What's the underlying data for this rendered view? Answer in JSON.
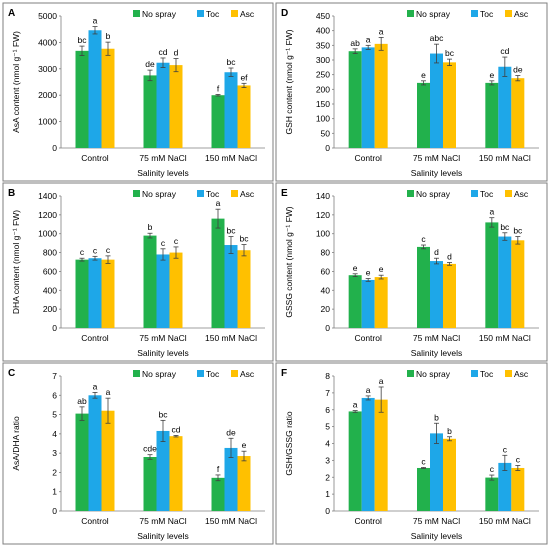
{
  "colors": {
    "No spray": "#22b14c",
    "Toc": "#1ea7e8",
    "Asc": "#ffc000"
  },
  "chart_data": [
    {
      "panel": "A",
      "type": "bar",
      "ylabel": "AsA content (nmol g⁻¹ FW)",
      "xlabel": "Salinity levels",
      "categories": [
        "Control",
        "75 mM NaCl",
        "150 mM NaCl"
      ],
      "ylim": [
        0,
        5000
      ],
      "yticks": [
        0,
        1000,
        2000,
        3000,
        4000,
        5000
      ],
      "legend_position": "top-right",
      "series": [
        {
          "name": "No spray",
          "values": [
            3680,
            2750,
            2000
          ],
          "errors": [
            180,
            200,
            30
          ],
          "labels": [
            "bc",
            "de",
            "f"
          ]
        },
        {
          "name": "Toc",
          "values": [
            4460,
            3230,
            2870
          ],
          "errors": [
            140,
            180,
            160
          ],
          "labels": [
            "a",
            "cd",
            "bc"
          ]
        },
        {
          "name": "Asc",
          "values": [
            3760,
            3140,
            2370
          ],
          "errors": [
            250,
            250,
            80
          ],
          "labels": [
            "b",
            "d",
            "ef"
          ]
        }
      ]
    },
    {
      "panel": "D",
      "type": "bar",
      "ylabel": "GSH content (nmol g⁻¹ FW)",
      "xlabel": "Salinity levels",
      "categories": [
        "Control",
        "75 mM NaCl",
        "150 mM NaCl"
      ],
      "ylim": [
        0,
        450
      ],
      "yticks": [
        0,
        50,
        100,
        150,
        200,
        250,
        300,
        350,
        400,
        450
      ],
      "legend_position": "top-right",
      "series": [
        {
          "name": "No spray",
          "values": [
            330,
            222,
            222
          ],
          "errors": [
            8,
            7,
            7
          ],
          "labels": [
            "ab",
            "e",
            "e"
          ]
        },
        {
          "name": "Toc",
          "values": [
            343,
            322,
            277
          ],
          "errors": [
            7,
            32,
            33
          ],
          "labels": [
            "a",
            "abc",
            "cd"
          ]
        },
        {
          "name": "Asc",
          "values": [
            355,
            292,
            238
          ],
          "errors": [
            22,
            11,
            9
          ],
          "labels": [
            "a",
            "bc",
            "de"
          ]
        }
      ]
    },
    {
      "panel": "B",
      "type": "bar",
      "ylabel": "DHA content (nmol g⁻¹ FW)",
      "xlabel": "Salinity levels",
      "categories": [
        "Control",
        "75 mM NaCl",
        "150 mM NaCl"
      ],
      "ylim": [
        0,
        1400
      ],
      "yticks": [
        0,
        200,
        400,
        600,
        800,
        1000,
        1200,
        1400
      ],
      "legend_position": "top-right",
      "series": [
        {
          "name": "No spray",
          "values": [
            725,
            980,
            1160
          ],
          "errors": [
            15,
            25,
            100
          ],
          "labels": [
            "c",
            "b",
            "a"
          ]
        },
        {
          "name": "Toc",
          "values": [
            740,
            780,
            880
          ],
          "errors": [
            20,
            60,
            90
          ],
          "labels": [
            "c",
            "c",
            "bc"
          ]
        },
        {
          "name": "Asc",
          "values": [
            725,
            800,
            825
          ],
          "errors": [
            40,
            60,
            60
          ],
          "labels": [
            "c",
            "c",
            "bc"
          ]
        }
      ]
    },
    {
      "panel": "E",
      "type": "bar",
      "ylabel": "GSSG content (nmol g⁻¹ FW)",
      "xlabel": "Salinity levels",
      "categories": [
        "Control",
        "75 mM NaCl",
        "150 mM NaCl"
      ],
      "ylim": [
        0,
        140
      ],
      "yticks": [
        0,
        20,
        40,
        60,
        80,
        100,
        120,
        140
      ],
      "legend_position": "top-right",
      "series": [
        {
          "name": "No spray",
          "values": [
            56,
            86,
            112
          ],
          "errors": [
            1.5,
            2,
            5
          ],
          "labels": [
            "e",
            "c",
            "a"
          ]
        },
        {
          "name": "Toc",
          "values": [
            51,
            71,
            97
          ],
          "errors": [
            1.5,
            3,
            4
          ],
          "labels": [
            "e",
            "d",
            "bc"
          ]
        },
        {
          "name": "Asc",
          "values": [
            54,
            68,
            93
          ],
          "errors": [
            2,
            1.5,
            4
          ],
          "labels": [
            "e",
            "d",
            "bc"
          ]
        }
      ]
    },
    {
      "panel": "C",
      "type": "bar",
      "ylabel": "AsA/DHA ratio",
      "xlabel": "Salinity levels",
      "categories": [
        "Control",
        "75 mM NaCl",
        "150 mM NaCl"
      ],
      "ylim": [
        0,
        7
      ],
      "yticks": [
        0,
        1,
        2,
        3,
        4,
        5,
        6,
        7
      ],
      "legend_position": "top-right",
      "series": [
        {
          "name": "No spray",
          "values": [
            5.05,
            2.8,
            1.72
          ],
          "errors": [
            0.35,
            0.12,
            0.15
          ],
          "labels": [
            "ab",
            "cde",
            "f"
          ]
        },
        {
          "name": "Toc",
          "values": [
            6.0,
            4.15,
            3.27
          ],
          "errors": [
            0.15,
            0.55,
            0.5
          ],
          "labels": [
            "a",
            "bc",
            "de"
          ]
        },
        {
          "name": "Asc",
          "values": [
            5.2,
            3.88,
            2.85
          ],
          "errors": [
            0.65,
            0.04,
            0.25
          ],
          "labels": [
            "a",
            "cd",
            "e"
          ]
        }
      ]
    },
    {
      "panel": "F",
      "type": "bar",
      "ylabel": "GSH/GSSG ratio",
      "xlabel": "Salinity levels",
      "categories": [
        "Control",
        "75 mM NaCl",
        "150 mM NaCl"
      ],
      "ylim": [
        0,
        8
      ],
      "yticks": [
        0,
        1,
        2,
        3,
        4,
        5,
        6,
        7,
        8
      ],
      "legend_position": "top-right",
      "series": [
        {
          "name": "No spray",
          "values": [
            5.9,
            2.55,
            1.98
          ],
          "errors": [
            0.05,
            0.03,
            0.15
          ],
          "labels": [
            "a",
            "c",
            "c"
          ]
        },
        {
          "name": "Toc",
          "values": [
            6.7,
            4.6,
            2.85
          ],
          "errors": [
            0.12,
            0.6,
            0.45
          ],
          "labels": [
            "a",
            "b",
            "c"
          ]
        },
        {
          "name": "Asc",
          "values": [
            6.6,
            4.28,
            2.55
          ],
          "errors": [
            0.75,
            0.12,
            0.15
          ],
          "labels": [
            "a",
            "b",
            "c"
          ]
        }
      ]
    }
  ]
}
